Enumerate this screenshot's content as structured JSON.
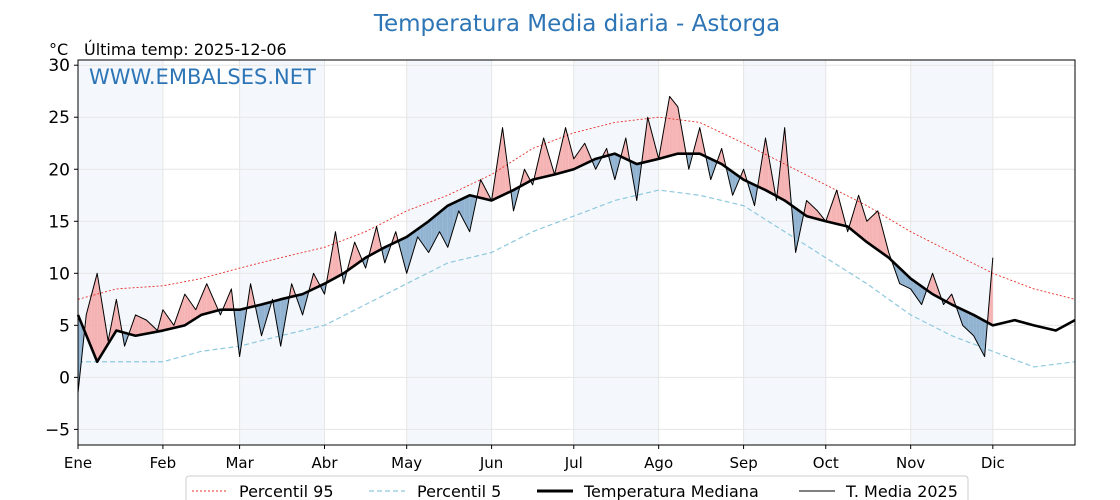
{
  "chart_data": {
    "type": "line",
    "title": "Temperatura Media diaria - Astorga",
    "unit": "°C",
    "last_temp_label": "Última temp: 2025-12-06",
    "watermark": "WWW.EMBALSES.NET",
    "ylim": [
      -6.5,
      30.5
    ],
    "yticks": [
      -5,
      0,
      5,
      10,
      15,
      20,
      25,
      30
    ],
    "grid": true,
    "legend_position": "bottom",
    "months": [
      "Ene",
      "Feb",
      "Mar",
      "Abr",
      "May",
      "Jun",
      "Jul",
      "Ago",
      "Sep",
      "Oct",
      "Nov",
      "Dic"
    ],
    "month_start_day": [
      1,
      32,
      60,
      91,
      121,
      152,
      182,
      213,
      244,
      274,
      305,
      335
    ],
    "series": [
      {
        "name": "Percentil 95",
        "color": "#e8302a",
        "style": "dotted",
        "x": [
          1,
          15,
          32,
          46,
          60,
          75,
          91,
          106,
          121,
          136,
          152,
          167,
          182,
          197,
          213,
          228,
          244,
          259,
          274,
          289,
          305,
          320,
          335,
          350,
          365
        ],
        "y": [
          7.5,
          8.5,
          8.8,
          9.5,
          10.5,
          11.5,
          12.5,
          14,
          16,
          17.5,
          19.5,
          22,
          23.5,
          24.5,
          25,
          24.5,
          22.5,
          20.5,
          18.5,
          16.5,
          14,
          12,
          10,
          8.5,
          7.5
        ]
      },
      {
        "name": "Percentil 5",
        "color": "#8ec8de",
        "style": "dashed",
        "x": [
          1,
          15,
          32,
          46,
          60,
          75,
          91,
          106,
          121,
          136,
          152,
          167,
          182,
          197,
          213,
          228,
          244,
          259,
          274,
          289,
          305,
          320,
          335,
          350,
          365
        ],
        "y": [
          1.5,
          1.5,
          1.5,
          2.5,
          3.0,
          4.0,
          5.0,
          7.0,
          9.0,
          11.0,
          12.0,
          14.0,
          15.5,
          17.0,
          18.0,
          17.5,
          16.5,
          14.0,
          11.5,
          9.0,
          6.0,
          4.0,
          2.5,
          1.0,
          1.5
        ]
      },
      {
        "name": "Temperatura Mediana",
        "color": "#000000",
        "style": "thick",
        "x": [
          1,
          8,
          15,
          22,
          32,
          40,
          46,
          53,
          60,
          68,
          75,
          83,
          91,
          98,
          106,
          113,
          121,
          129,
          136,
          144,
          152,
          160,
          167,
          175,
          182,
          190,
          197,
          205,
          213,
          220,
          228,
          236,
          244,
          252,
          259,
          267,
          274,
          282,
          289,
          297,
          305,
          313,
          320,
          328,
          335,
          343,
          350,
          358,
          365
        ],
        "y": [
          6.0,
          1.5,
          4.5,
          4.0,
          4.5,
          5.0,
          6.0,
          6.5,
          6.5,
          7.0,
          7.5,
          8.0,
          9.0,
          10.0,
          11.5,
          12.5,
          13.5,
          15.0,
          16.5,
          17.5,
          17.0,
          18.0,
          19.0,
          19.5,
          20.0,
          21.0,
          21.5,
          20.5,
          21.0,
          21.5,
          21.5,
          20.5,
          19.0,
          18.0,
          17.0,
          15.5,
          15.0,
          14.5,
          13.0,
          11.5,
          9.5,
          8.0,
          7.0,
          6.0,
          5.0,
          5.5,
          5.0,
          4.5,
          5.5
        ]
      },
      {
        "name": "T. Media 2025",
        "color": "#000000",
        "style": "thin",
        "x": [
          1,
          4,
          8,
          12,
          15,
          18,
          22,
          26,
          30,
          32,
          36,
          40,
          44,
          48,
          53,
          57,
          60,
          64,
          68,
          72,
          75,
          79,
          83,
          87,
          91,
          95,
          98,
          102,
          106,
          110,
          113,
          117,
          121,
          125,
          129,
          133,
          136,
          140,
          144,
          148,
          152,
          156,
          160,
          164,
          167,
          171,
          175,
          179,
          182,
          186,
          190,
          194,
          197,
          201,
          205,
          209,
          213,
          217,
          220,
          224,
          228,
          232,
          236,
          240,
          244,
          248,
          252,
          256,
          259,
          263,
          267,
          271,
          274,
          278,
          282,
          286,
          289,
          293,
          297,
          301,
          305,
          309,
          313,
          317,
          320,
          324,
          328,
          332,
          335
        ],
        "y": [
          -1.5,
          6.0,
          10.0,
          3.5,
          7.5,
          3.0,
          6.0,
          5.5,
          4.5,
          6.5,
          5.0,
          8.0,
          6.5,
          9.0,
          6.0,
          8.5,
          2.0,
          9.0,
          4.0,
          7.5,
          3.0,
          9.0,
          6.0,
          10.0,
          8.0,
          14.0,
          9.0,
          13.0,
          10.5,
          14.5,
          11.0,
          14.0,
          10.0,
          13.5,
          12.0,
          14.0,
          12.5,
          16.0,
          14.0,
          19.0,
          17.0,
          24.0,
          16.0,
          20.0,
          18.5,
          23.0,
          19.5,
          24.0,
          21.0,
          22.5,
          20.0,
          22.0,
          19.0,
          23.0,
          17.0,
          25.0,
          21.0,
          27.0,
          26.0,
          20.0,
          24.0,
          19.0,
          22.0,
          17.5,
          20.0,
          16.5,
          23.0,
          17.0,
          24.0,
          12.0,
          17.0,
          16.0,
          15.0,
          18.0,
          14.0,
          17.5,
          15.0,
          16.0,
          12.0,
          9.0,
          8.5,
          7.0,
          10.0,
          7.0,
          8.0,
          5.0,
          4.0,
          2.0,
          11.5
        ]
      }
    ]
  }
}
